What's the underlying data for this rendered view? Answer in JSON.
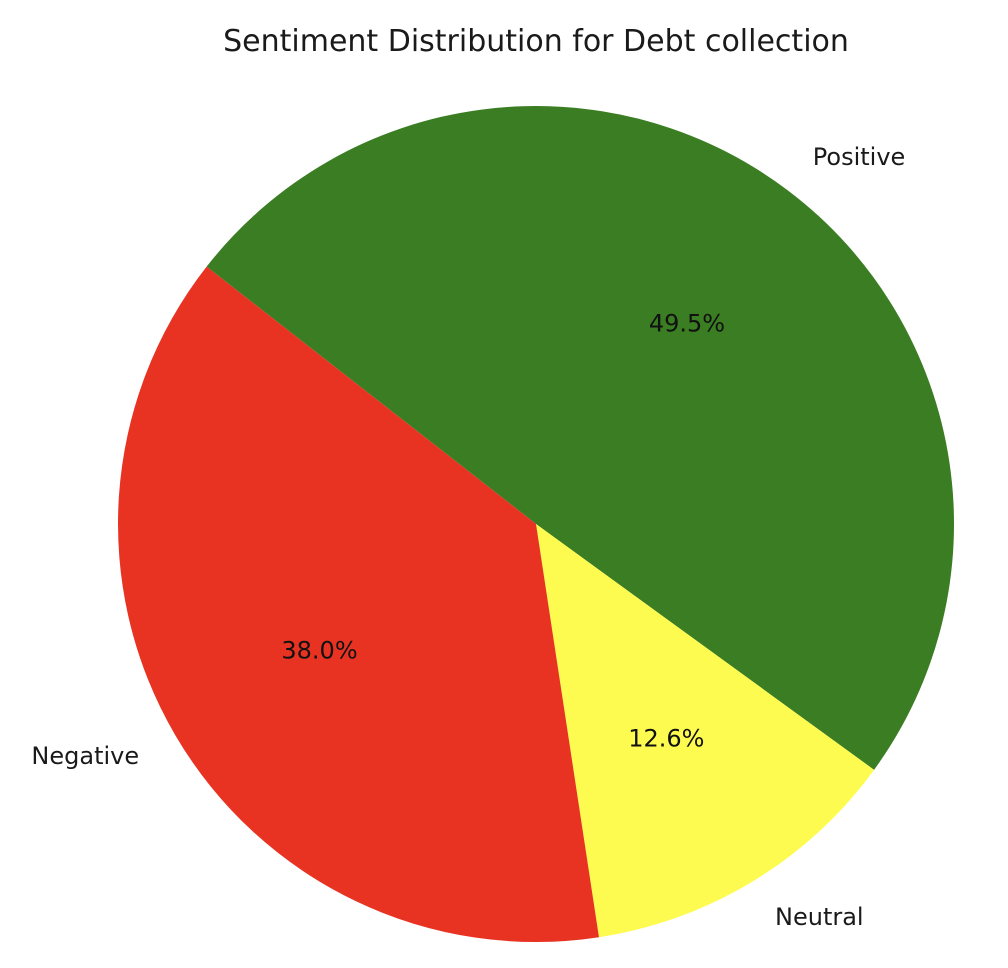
{
  "chart_data": {
    "type": "pie",
    "title": "Sentiment Distribution for Debt collection",
    "slices": [
      {
        "label": "Positive",
        "value": 49.5,
        "pct_label": "49.5%",
        "color": "#3a7d22"
      },
      {
        "label": "Neutral",
        "value": 12.6,
        "pct_label": "12.6%",
        "color": "#fefb50"
      },
      {
        "label": "Negative",
        "value": 38.0,
        "pct_label": "38.0%",
        "color": "#e83323"
      }
    ]
  }
}
